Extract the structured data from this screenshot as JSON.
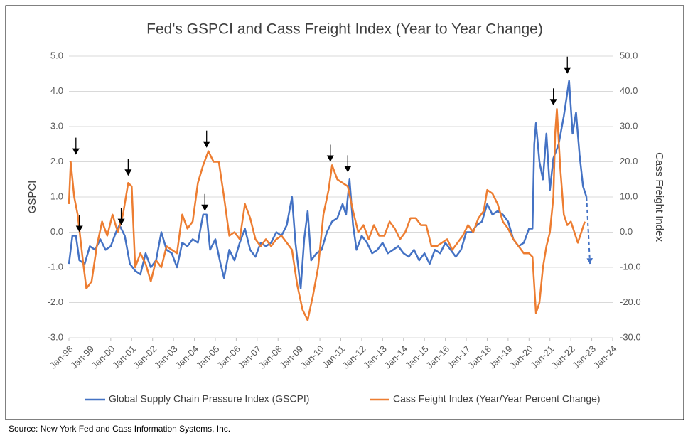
{
  "chart_data": {
    "type": "line",
    "title": "Fed's GSPCI and Cass Freight Index (Year to Year Change)",
    "y_label": "GSPCI",
    "y2_label": "Cass Freight Index",
    "source": "Source: New York Fed and Cass Information Systems, Inc.",
    "xlim": [
      "1998-01",
      "2024-01"
    ],
    "xticks": [
      {
        "value": "1998-01",
        "label": "Jan-98"
      },
      {
        "value": "1999-01",
        "label": "Jan-99"
      },
      {
        "value": "2000-01",
        "label": "Jan-00"
      },
      {
        "value": "2001-01",
        "label": "Jan-01"
      },
      {
        "value": "2002-01",
        "label": "Jan-02"
      },
      {
        "value": "2003-01",
        "label": "Jan-03"
      },
      {
        "value": "2004-01",
        "label": "Jan-04"
      },
      {
        "value": "2005-01",
        "label": "Jan-05"
      },
      {
        "value": "2006-01",
        "label": "Jan-06"
      },
      {
        "value": "2007-01",
        "label": "Jan-07"
      },
      {
        "value": "2008-01",
        "label": "Jan-08"
      },
      {
        "value": "2009-01",
        "label": "Jan-09"
      },
      {
        "value": "2010-01",
        "label": "Jan-10"
      },
      {
        "value": "2011-01",
        "label": "Jan-11"
      },
      {
        "value": "2012-01",
        "label": "Jan-12"
      },
      {
        "value": "2013-01",
        "label": "Jan-13"
      },
      {
        "value": "2014-01",
        "label": "Jan-14"
      },
      {
        "value": "2015-01",
        "label": "Jan-15"
      },
      {
        "value": "2016-01",
        "label": "Jan-16"
      },
      {
        "value": "2017-01",
        "label": "Jan-17"
      },
      {
        "value": "2018-01",
        "label": "Jan-18"
      },
      {
        "value": "2019-01",
        "label": "Jan-19"
      },
      {
        "value": "2020-01",
        "label": "Jan-20"
      },
      {
        "value": "2021-01",
        "label": "Jan-21"
      },
      {
        "value": "2022-01",
        "label": "Jan-22"
      },
      {
        "value": "2023-01",
        "label": "Jan-23"
      },
      {
        "value": "2024-01",
        "label": "Jan-24"
      }
    ],
    "ylim": [
      -3,
      5
    ],
    "yticks": [
      {
        "value": 5,
        "label": "5.0"
      },
      {
        "value": 4,
        "label": "4.0"
      },
      {
        "value": 3,
        "label": "3.0"
      },
      {
        "value": 2,
        "label": "2.0"
      },
      {
        "value": 1,
        "label": "1.0"
      },
      {
        "value": 0,
        "label": "0.0"
      },
      {
        "value": -1,
        "label": "-1.0"
      },
      {
        "value": -2,
        "label": "-2.0"
      },
      {
        "value": -3,
        "label": "-3.0"
      }
    ],
    "y2lim": [
      -30,
      50
    ],
    "y2ticks": [
      {
        "value": 50,
        "label": "50.0"
      },
      {
        "value": 40,
        "label": "40.0"
      },
      {
        "value": 30,
        "label": "30.0"
      },
      {
        "value": 20,
        "label": "20.0"
      },
      {
        "value": 10,
        "label": "10.0"
      },
      {
        "value": 0,
        "label": "0.0"
      },
      {
        "value": -10,
        "label": "-10.0"
      },
      {
        "value": -20,
        "label": "-20.0"
      },
      {
        "value": -30,
        "label": "-30.0"
      }
    ],
    "series": [
      {
        "name": "Global Supply Chain Pressure Index (GSCPI)",
        "color": "#4472c4",
        "x": [
          "1998-01",
          "1998-03",
          "1998-05",
          "1998-07",
          "1998-10",
          "1999-01",
          "1999-04",
          "1999-07",
          "1999-10",
          "2000-01",
          "2000-04",
          "2000-06",
          "2000-09",
          "2000-12",
          "2001-03",
          "2001-06",
          "2001-09",
          "2001-12",
          "2002-03",
          "2002-06",
          "2002-09",
          "2002-12",
          "2003-03",
          "2003-06",
          "2003-09",
          "2003-12",
          "2004-03",
          "2004-06",
          "2004-08",
          "2004-10",
          "2005-01",
          "2005-04",
          "2005-06",
          "2005-09",
          "2005-12",
          "2006-03",
          "2006-06",
          "2006-09",
          "2006-12",
          "2007-03",
          "2007-06",
          "2007-09",
          "2007-12",
          "2008-03",
          "2008-06",
          "2008-09",
          "2008-11",
          "2009-02",
          "2009-04",
          "2009-06",
          "2009-08",
          "2009-11",
          "2010-02",
          "2010-05",
          "2010-08",
          "2010-11",
          "2011-02",
          "2011-04",
          "2011-06",
          "2011-08",
          "2011-10",
          "2012-01",
          "2012-04",
          "2012-07",
          "2012-10",
          "2013-01",
          "2013-04",
          "2013-07",
          "2013-10",
          "2014-01",
          "2014-04",
          "2014-07",
          "2014-10",
          "2015-01",
          "2015-04",
          "2015-07",
          "2015-10",
          "2016-01",
          "2016-04",
          "2016-07",
          "2016-10",
          "2017-01",
          "2017-04",
          "2017-07",
          "2017-10",
          "2018-01",
          "2018-04",
          "2018-07",
          "2018-10",
          "2019-01",
          "2019-04",
          "2019-07",
          "2019-10",
          "2020-01",
          "2020-03",
          "2020-04",
          "2020-05",
          "2020-07",
          "2020-09",
          "2020-11",
          "2021-01",
          "2021-03",
          "2021-06",
          "2021-09",
          "2021-12",
          "2022-02",
          "2022-04",
          "2022-06",
          "2022-08",
          "2022-10"
        ],
        "values": [
          -0.9,
          -0.1,
          -0.1,
          -0.8,
          -0.9,
          -0.4,
          -0.5,
          -0.2,
          -0.5,
          -0.4,
          0.0,
          0.2,
          -0.1,
          -0.9,
          -1.1,
          -1.2,
          -0.6,
          -1.0,
          -0.8,
          0.0,
          -0.5,
          -0.6,
          -1.0,
          -0.3,
          -0.4,
          -0.2,
          -0.3,
          0.5,
          0.5,
          -0.5,
          -0.2,
          -0.9,
          -1.3,
          -0.5,
          -0.8,
          -0.3,
          0.1,
          -0.5,
          -0.7,
          -0.3,
          -0.4,
          -0.3,
          0.0,
          -0.1,
          0.2,
          1.0,
          -0.3,
          -1.6,
          -0.2,
          0.6,
          -0.8,
          -0.6,
          -0.5,
          0.0,
          0.3,
          0.4,
          0.8,
          0.5,
          1.5,
          0.2,
          -0.5,
          -0.1,
          -0.3,
          -0.6,
          -0.5,
          -0.3,
          -0.6,
          -0.5,
          -0.4,
          -0.6,
          -0.7,
          -0.5,
          -0.8,
          -0.6,
          -0.9,
          -0.5,
          -0.6,
          -0.3,
          -0.5,
          -0.7,
          -0.5,
          0.0,
          0.0,
          0.2,
          0.3,
          0.8,
          0.5,
          0.6,
          0.5,
          0.3,
          -0.2,
          -0.4,
          -0.3,
          0.1,
          0.1,
          2.5,
          3.1,
          2.0,
          1.5,
          2.8,
          1.2,
          2.1,
          2.5,
          3.3,
          4.3,
          2.8,
          3.4,
          2.2,
          1.3,
          1.0
        ]
      },
      {
        "name": "Cass Feight Index (Year/Year Percent Change)",
        "color": "#ed7d31",
        "axis": "y2",
        "x": [
          "1998-01",
          "1998-02",
          "1998-04",
          "1998-06",
          "1998-09",
          "1998-11",
          "1999-02",
          "1999-05",
          "1999-08",
          "1999-11",
          "2000-02",
          "2000-05",
          "2000-08",
          "2000-11",
          "2001-01",
          "2001-03",
          "2001-06",
          "2001-09",
          "2001-12",
          "2002-03",
          "2002-06",
          "2002-09",
          "2002-12",
          "2003-03",
          "2003-06",
          "2003-09",
          "2003-12",
          "2004-03",
          "2004-06",
          "2004-09",
          "2004-12",
          "2005-03",
          "2005-06",
          "2005-09",
          "2005-12",
          "2006-03",
          "2006-06",
          "2006-09",
          "2006-12",
          "2007-03",
          "2007-06",
          "2007-09",
          "2007-12",
          "2008-03",
          "2008-06",
          "2008-09",
          "2008-12",
          "2009-03",
          "2009-06",
          "2009-09",
          "2009-12",
          "2010-03",
          "2010-06",
          "2010-08",
          "2010-11",
          "2011-02",
          "2011-05",
          "2011-08",
          "2011-11",
          "2012-02",
          "2012-05",
          "2012-08",
          "2012-11",
          "2013-02",
          "2013-05",
          "2013-08",
          "2013-11",
          "2014-02",
          "2014-05",
          "2014-08",
          "2014-11",
          "2015-02",
          "2015-05",
          "2015-08",
          "2015-11",
          "2016-02",
          "2016-05",
          "2016-08",
          "2016-11",
          "2017-02",
          "2017-05",
          "2017-08",
          "2017-11",
          "2018-01",
          "2018-04",
          "2018-07",
          "2018-10",
          "2019-01",
          "2019-04",
          "2019-07",
          "2019-10",
          "2020-01",
          "2020-03",
          "2020-05",
          "2020-07",
          "2020-09",
          "2020-11",
          "2021-01",
          "2021-03",
          "2021-04",
          "2021-05",
          "2021-07",
          "2021-09",
          "2021-11",
          "2022-01",
          "2022-03",
          "2022-05",
          "2022-07",
          "2022-09"
        ],
        "values": [
          8,
          20,
          10,
          5,
          -8,
          -16,
          -14,
          -4,
          3,
          -1,
          5,
          0,
          5,
          14,
          13,
          -10,
          -6,
          -9,
          -14,
          -8,
          -10,
          -4,
          -5,
          -6,
          5,
          1,
          3,
          14,
          19,
          23,
          20,
          20,
          10,
          -1,
          0,
          -2,
          8,
          4,
          -2,
          -4,
          -2,
          -4,
          -2,
          -1,
          -3,
          -5,
          -15,
          -22,
          -25,
          -18,
          -10,
          5,
          12,
          19,
          15,
          14,
          13,
          6,
          0,
          2,
          -2,
          2,
          -1,
          -1,
          3,
          1,
          -2,
          0,
          4,
          4,
          2,
          2,
          -4,
          -4,
          -3,
          -2,
          -5,
          -3,
          -1,
          2,
          0,
          4,
          6,
          12,
          11,
          8,
          3,
          1,
          -2,
          -4,
          -6,
          -6,
          -7,
          -23,
          -20,
          -10,
          -4,
          0,
          10,
          28,
          35,
          18,
          5,
          2,
          3,
          0,
          -3,
          0,
          3
        ]
      }
    ],
    "projection": {
      "x": [
        "2022-10",
        "2022-12"
      ],
      "values": [
        1.0,
        -0.9
      ]
    },
    "arrows": [
      {
        "x": "1998-05",
        "y": 2.2
      },
      {
        "x": "1998-07",
        "y": 0.0
      },
      {
        "x": "2000-07",
        "y": 0.2
      },
      {
        "x": "2000-11",
        "y": 1.6
      },
      {
        "x": "2004-07",
        "y": 0.6
      },
      {
        "x": "2004-08",
        "y": 2.4
      },
      {
        "x": "2010-07",
        "y": 2.0
      },
      {
        "x": "2011-05",
        "y": 1.7
      },
      {
        "x": "2021-03",
        "y": 3.6
      },
      {
        "x": "2021-11",
        "y": 4.5
      }
    ]
  }
}
